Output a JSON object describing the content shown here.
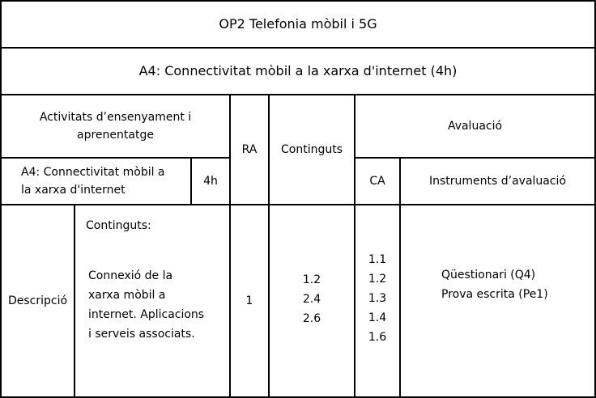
{
  "title": "OP2 Telefonia mòbil i 5G",
  "activity_header": "A4: Connectivitat mòbil a la xarxa d'internet (4h)",
  "columns": {
    "activities": "Activitats d’ensenyament i aprenentatge",
    "ra": "RA",
    "contents": "Continguts",
    "evaluation": "Avaluació",
    "ca": "CA",
    "instruments": "Instruments d’avaluació"
  },
  "activity": {
    "name_line1": "A4: Connectivitat mòbil a",
    "name_line2": "la xarxa d'internet",
    "hours": "4h"
  },
  "description": {
    "label": "Descripció",
    "contents_label": "Continguts:",
    "text_lines": [
      "Connexió de la",
      "xarxa mòbil a",
      "internet. Aplicacions",
      "i serveis associats."
    ]
  },
  "ra_value": "1",
  "contents_values": [
    "1.2",
    "2.4",
    "2.6"
  ],
  "ca_values": [
    "1.1",
    "1.2",
    "1.3",
    "1.4",
    "1.6"
  ],
  "instruments": [
    "Qüestionari (Q4)",
    "Prova escrita (Pe1)"
  ]
}
